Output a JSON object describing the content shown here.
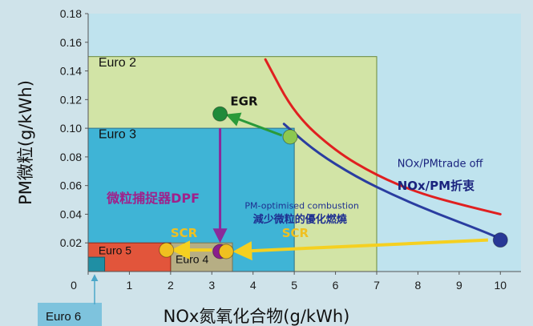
{
  "chart_data": {
    "type": "scatter",
    "xlabel": "NOx氮氧化合物(g/kWh)",
    "ylabel": "PM微粒(g/kWh)",
    "xlim": [
      0,
      10.5
    ],
    "ylim": [
      0,
      0.18
    ],
    "x_ticks": [
      "0",
      "1",
      "2",
      "3",
      "4",
      "5",
      "6",
      "7",
      "8",
      "9",
      "10"
    ],
    "y_ticks": [
      "0.02",
      "0.04",
      "0.06",
      "0.08",
      "0.10",
      "0.12",
      "0.14",
      "0.16",
      "0.18"
    ],
    "grid": false,
    "regions": [
      {
        "name": "Euro 2",
        "x": [
          0,
          7
        ],
        "y": [
          0,
          0.15
        ],
        "color": "#d2e4a6"
      },
      {
        "name": "Euro 3",
        "x": [
          0,
          5
        ],
        "y": [
          0,
          0.1
        ],
        "color": "#3fb4d6"
      },
      {
        "name": "Euro 4",
        "x": [
          2,
          3.5
        ],
        "y": [
          0,
          0.02
        ],
        "color": "#b6ae84"
      },
      {
        "name": "Euro 5",
        "x": [
          0,
          2
        ],
        "y": [
          0,
          0.02
        ],
        "color": "#e2553b"
      },
      {
        "name": "Euro 6",
        "x": [
          0,
          0.4
        ],
        "y": [
          0,
          0.01
        ],
        "color": "#1f8fa4"
      }
    ],
    "curves": [
      {
        "name": "",
        "color": "#e02020",
        "points": [
          [
            4.3,
            0.148
          ],
          [
            5,
            0.11
          ],
          [
            6,
            0.084
          ],
          [
            7,
            0.067
          ],
          [
            8,
            0.055
          ],
          [
            9,
            0.047
          ],
          [
            10,
            0.04
          ]
        ]
      },
      {
        "name": "",
        "color": "#2a3da0",
        "points": [
          [
            4.75,
            0.103
          ],
          [
            5.5,
            0.084
          ],
          [
            6.5,
            0.066
          ],
          [
            7.5,
            0.052
          ],
          [
            8.5,
            0.04
          ],
          [
            9.5,
            0.029
          ],
          [
            10,
            0.023
          ]
        ]
      }
    ],
    "points": [
      {
        "x": 4.9,
        "y": 0.094,
        "color": "#8cc850"
      },
      {
        "x": 3.2,
        "y": 0.11,
        "color": "#1f8a3a"
      },
      {
        "x": 10,
        "y": 0.022,
        "color": "#283896"
      },
      {
        "x": 3.2,
        "y": 0.014,
        "color": "#8a1e8c"
      },
      {
        "x": 3.35,
        "y": 0.014,
        "color": "#f0c020"
      },
      {
        "x": 1.9,
        "y": 0.015,
        "color": "#f0c020"
      }
    ],
    "arrows": [
      {
        "from": [
          4.7,
          0.095
        ],
        "to": [
          3.4,
          0.109
        ],
        "color": "#2a9a3a"
      },
      {
        "from": [
          3.2,
          0.1
        ],
        "to": [
          3.2,
          0.022
        ],
        "color": "#8a2a9a"
      },
      {
        "from": [
          9.7,
          0.022
        ],
        "to": [
          3.6,
          0.014
        ],
        "color": "#f5d020"
      },
      {
        "from": [
          3.0,
          0.015
        ],
        "to": [
          2.1,
          0.015
        ],
        "color": "#f5d020"
      }
    ],
    "annotations": [
      {
        "text": "EGR",
        "x": 3.45,
        "y": 0.116,
        "color": "#111111",
        "size": 15
      },
      {
        "text": "微粒捕捉器DPF",
        "x": 0.45,
        "y": 0.048,
        "color": "#a0208a",
        "size": 16
      },
      {
        "text": "PM-optimised combustion",
        "x": 3.8,
        "y": 0.044,
        "color": "#1e2f90",
        "size": 11
      },
      {
        "text": "減少微粒的優化燃燒",
        "x": 4.0,
        "y": 0.034,
        "color": "#1e2f90",
        "size": 13
      },
      {
        "text": "SCR",
        "x": 2.0,
        "y": 0.024,
        "color": "#f0c020",
        "size": 15
      },
      {
        "text": "SCR",
        "x": 4.7,
        "y": 0.024,
        "color": "#f0c020",
        "size": 15
      },
      {
        "text": "NOx/PMtrade off",
        "x": 7.5,
        "y": 0.073,
        "color": "#1a237e",
        "size": 13
      },
      {
        "text": "NOx/PM折衷",
        "x": 7.5,
        "y": 0.057,
        "color": "#1a237e",
        "size": 15
      }
    ]
  }
}
